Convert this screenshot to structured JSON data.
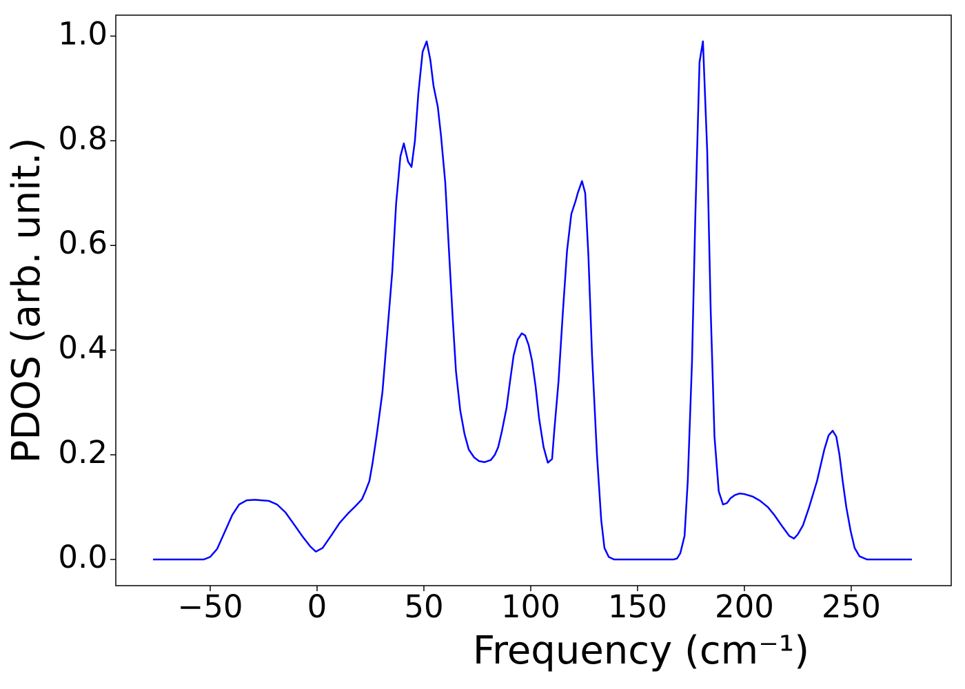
{
  "chart_data": {
    "type": "line",
    "ylabel": "PDOS (arb. unit.)",
    "xlabel": "Frequency (cm⁻¹)",
    "color": "#0000ff",
    "xlim": [
      -94.2,
      296.8
    ],
    "ylim": [
      -0.05,
      1.04
    ],
    "xticks": [
      {
        "value": -50,
        "label": "−50"
      },
      0,
      50,
      100,
      150,
      200,
      250
    ],
    "yticks": [
      {
        "value": 0,
        "label": "0.0"
      },
      0.2,
      0.4,
      0.6,
      0.8,
      {
        "value": 1,
        "label": "1.0"
      }
    ],
    "x": [
      -76.8,
      -53,
      -50,
      -46.8,
      -43.5,
      -39.7,
      -36.5,
      -33,
      -29,
      -22.6,
      -18.7,
      -14.8,
      -11.3,
      -7,
      -3.2,
      -0.6,
      2.6,
      6.5,
      10.6,
      14.5,
      18,
      21,
      22.6,
      24.5,
      26,
      28,
      30.6,
      33.2,
      35.2,
      37,
      39,
      40.6,
      42.6,
      44.2,
      45.8,
      47.4,
      49.4,
      51.3,
      53,
      54.5,
      56.5,
      58,
      60,
      61.6,
      63.5,
      65,
      67,
      69,
      71,
      73.5,
      75.8,
      78.4,
      81.3,
      83.2,
      84.8,
      86.5,
      88.7,
      90.3,
      92,
      93.9,
      95.8,
      97.4,
      99,
      100.6,
      102.3,
      103.9,
      106,
      108,
      110,
      111,
      113,
      115,
      117,
      119,
      121,
      122,
      124,
      125.5,
      127,
      128.7,
      131,
      133,
      134.5,
      136.5,
      139,
      166.8,
      168.5,
      170,
      172,
      173.5,
      175.5,
      177,
      179,
      180.6,
      182.6,
      184.2,
      186,
      188,
      190,
      191.9,
      193.5,
      195.5,
      197.7,
      200,
      204,
      207.4,
      211,
      214,
      217.4,
      221,
      223.2,
      225,
      227.4,
      230.3,
      234,
      237.4,
      239.4,
      241.3,
      243,
      244.5,
      246,
      247.7,
      249.7,
      251.6,
      253.9,
      257.4,
      278.4
    ],
    "values": [
      0,
      0,
      0.005,
      0.02,
      0.05,
      0.085,
      0.105,
      0.113,
      0.114,
      0.112,
      0.105,
      0.09,
      0.07,
      0.045,
      0.025,
      0.015,
      0.022,
      0.045,
      0.07,
      0.088,
      0.102,
      0.115,
      0.13,
      0.15,
      0.185,
      0.24,
      0.32,
      0.45,
      0.55,
      0.68,
      0.77,
      0.795,
      0.76,
      0.75,
      0.8,
      0.89,
      0.97,
      0.99,
      0.955,
      0.905,
      0.865,
      0.81,
      0.72,
      0.6,
      0.46,
      0.36,
      0.285,
      0.24,
      0.21,
      0.195,
      0.188,
      0.186,
      0.19,
      0.2,
      0.215,
      0.245,
      0.29,
      0.34,
      0.39,
      0.42,
      0.432,
      0.428,
      0.41,
      0.38,
      0.33,
      0.27,
      0.215,
      0.185,
      0.192,
      0.245,
      0.34,
      0.47,
      0.59,
      0.66,
      0.685,
      0.7,
      0.723,
      0.7,
      0.58,
      0.39,
      0.2,
      0.075,
      0.022,
      0.005,
      0,
      0,
      0.002,
      0.012,
      0.045,
      0.15,
      0.38,
      0.65,
      0.95,
      0.99,
      0.78,
      0.48,
      0.235,
      0.13,
      0.105,
      0.108,
      0.117,
      0.123,
      0.126,
      0.125,
      0.12,
      0.112,
      0.1,
      0.085,
      0.065,
      0.045,
      0.04,
      0.048,
      0.065,
      0.1,
      0.15,
      0.21,
      0.237,
      0.246,
      0.235,
      0.2,
      0.15,
      0.1,
      0.055,
      0.022,
      0.006,
      0,
      0
    ]
  }
}
